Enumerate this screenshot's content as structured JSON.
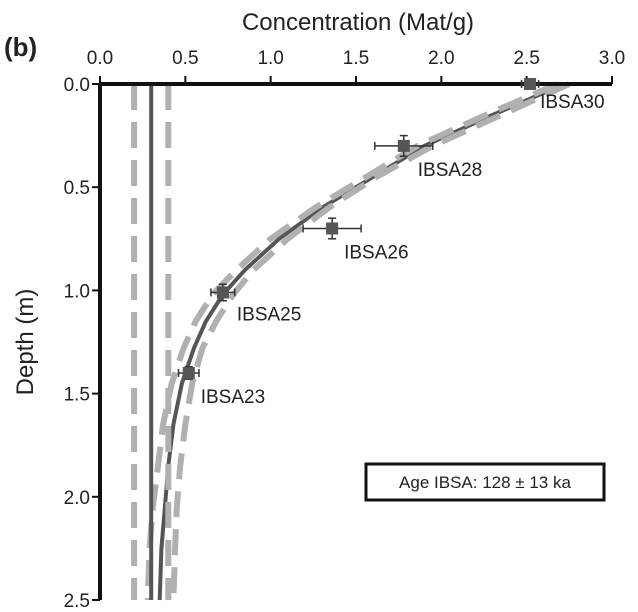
{
  "panel_label": "(b)",
  "annotation_box": "Age IBSA: 128 ± 13 ka",
  "chart_data": {
    "type": "scatter",
    "title": "",
    "xlabel": "Concentration (Mat/g)",
    "ylabel": "Depth (m)",
    "xlim": [
      0.0,
      3.0
    ],
    "ylim": [
      0.0,
      2.5
    ],
    "y_inverted": true,
    "x_axis_position": "top",
    "x_ticks": [
      "0.0",
      "0.5",
      "1.0",
      "1.5",
      "2.0",
      "2.5",
      "3.0"
    ],
    "y_ticks": [
      "0.0",
      "0.5",
      "1.0",
      "1.5",
      "2.0",
      "2.5"
    ],
    "grid": false,
    "points": [
      {
        "name": "IBSA30",
        "x": 2.52,
        "y": 0.0,
        "xerr": 0.05,
        "yerr": 0.0
      },
      {
        "name": "IBSA28",
        "x": 1.78,
        "y": 0.3,
        "xerr": 0.17,
        "yerr": 0.05
      },
      {
        "name": "IBSA26",
        "x": 1.36,
        "y": 0.7,
        "xerr": 0.17,
        "yerr": 0.05
      },
      {
        "name": "IBSA25",
        "x": 0.72,
        "y": 1.01,
        "xerr": 0.07,
        "yerr": 0.04
      },
      {
        "name": "IBSA23",
        "x": 0.52,
        "y": 1.4,
        "xerr": 0.06,
        "yerr": 0.03
      }
    ],
    "curves": [
      {
        "style": "solid-dark",
        "color": "#555555",
        "x": [
          2.72,
          2.3,
          1.9,
          1.6,
          1.3,
          1.05,
          0.85,
          0.72,
          0.62,
          0.55,
          0.48,
          0.43,
          0.4,
          0.38,
          0.36,
          0.35
        ],
        "y": [
          0.0,
          0.15,
          0.3,
          0.45,
          0.6,
          0.75,
          0.9,
          1.02,
          1.15,
          1.28,
          1.45,
          1.65,
          1.85,
          2.05,
          2.25,
          2.5
        ]
      },
      {
        "style": "dashed-light",
        "color": "#b0b0b0",
        "x": [
          2.75,
          2.35,
          1.95,
          1.62,
          1.34,
          1.1,
          0.9,
          0.78,
          0.68,
          0.6,
          0.54,
          0.5,
          0.47,
          0.45,
          0.44,
          0.43
        ],
        "y": [
          0.0,
          0.15,
          0.3,
          0.45,
          0.6,
          0.75,
          0.9,
          1.02,
          1.15,
          1.28,
          1.45,
          1.65,
          1.85,
          2.05,
          2.25,
          2.5
        ]
      },
      {
        "style": "dashed-light",
        "color": "#b0b0b0",
        "x": [
          2.68,
          2.26,
          1.86,
          1.56,
          1.26,
          1.0,
          0.8,
          0.66,
          0.56,
          0.49,
          0.42,
          0.37,
          0.34,
          0.31,
          0.29,
          0.28
        ],
        "y": [
          0.0,
          0.15,
          0.3,
          0.45,
          0.6,
          0.75,
          0.9,
          1.02,
          1.15,
          1.28,
          1.45,
          1.65,
          1.85,
          2.05,
          2.25,
          2.5
        ]
      },
      {
        "style": "solid-dark",
        "color": "#555555",
        "x": [
          0.3,
          0.3
        ],
        "y": [
          0.0,
          2.5
        ]
      },
      {
        "style": "dashed-light",
        "color": "#b0b0b0",
        "x": [
          0.2,
          0.2
        ],
        "y": [
          0.0,
          2.5
        ]
      },
      {
        "style": "dashed-light",
        "color": "#b0b0b0",
        "x": [
          0.4,
          0.4
        ],
        "y": [
          0.0,
          2.5
        ]
      }
    ]
  }
}
